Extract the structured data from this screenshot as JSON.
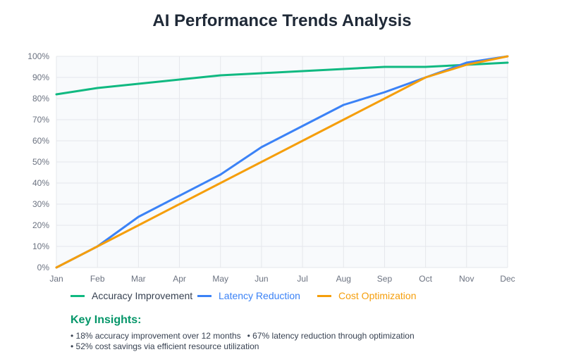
{
  "chart_data": {
    "type": "line",
    "title": "AI Performance Trends Analysis",
    "categories": [
      "Jan",
      "Feb",
      "Mar",
      "Apr",
      "May",
      "Jun",
      "Jul",
      "Aug",
      "Sep",
      "Oct",
      "Nov",
      "Dec"
    ],
    "y_ticks": [
      "0%",
      "10%",
      "20%",
      "30%",
      "40%",
      "50%",
      "60%",
      "70%",
      "80%",
      "90%",
      "100%"
    ],
    "ylim": [
      0,
      100
    ],
    "grid": true,
    "legend_position": "bottom",
    "series": [
      {
        "name": "Accuracy Improvement",
        "color": "#10b981",
        "legend_text_color": "#374151",
        "values": [
          82,
          85,
          87,
          89,
          91,
          92,
          93,
          94,
          95,
          95,
          96,
          97
        ]
      },
      {
        "name": "Latency Reduction",
        "color": "#3b82f6",
        "legend_text_color": "#3b82f6",
        "values": [
          0,
          10,
          24,
          34,
          44,
          57,
          67,
          77,
          83,
          90,
          97,
          100
        ]
      },
      {
        "name": "Cost Optimization",
        "color": "#f59e0b",
        "legend_text_color": "#f59e0b",
        "values": [
          0,
          10,
          20,
          30,
          40,
          50,
          60,
          70,
          80,
          90,
          96,
          100
        ]
      }
    ]
  },
  "insights": {
    "title": "Key Insights:",
    "lines": [
      [
        "• 18% accuracy improvement over 12 months",
        "• 67% latency reduction through optimization"
      ],
      [
        "• 52% cost savings via efficient resource utilization"
      ]
    ]
  }
}
